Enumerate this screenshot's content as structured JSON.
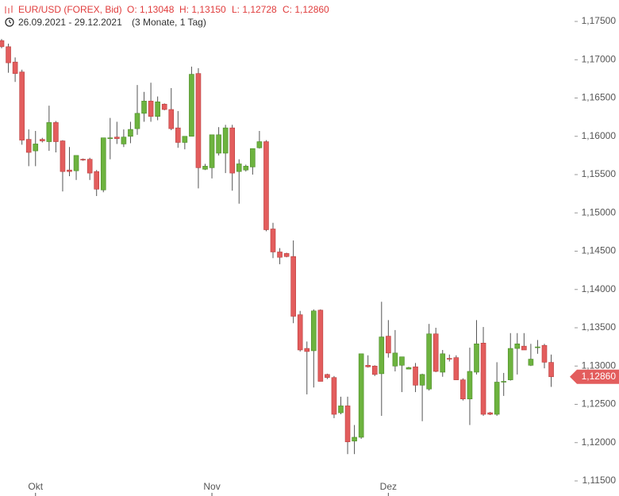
{
  "chart_data": {
    "type": "candlestick",
    "header": {
      "symbol": "EUR/USD (FOREX, Bid)",
      "open": "O: 1,13048",
      "high": "H: 1,13150",
      "low": "L: 1,12728",
      "close": "C: 1,12860",
      "range": "26.09.2021 - 29.12.2021",
      "span": "(3 Monate, 1 Tag)"
    },
    "categories": [
      null,
      null,
      null,
      null,
      null,
      "Okt",
      null,
      null,
      null,
      null,
      null,
      null,
      null,
      null,
      null,
      null,
      null,
      null,
      null,
      null,
      null,
      null,
      null,
      null,
      null,
      null,
      null,
      null,
      null,
      null,
      null,
      "Nov",
      null,
      null,
      null,
      null,
      null,
      null,
      null,
      null,
      null,
      null,
      null,
      null,
      null,
      null,
      null,
      null,
      null,
      null,
      null,
      null,
      null,
      null,
      null,
      null,
      null,
      "Dez",
      null,
      null,
      null,
      null,
      null,
      null,
      null,
      null,
      null,
      null,
      null,
      null,
      null,
      null,
      null,
      null,
      null,
      null,
      null,
      null,
      null,
      null,
      null,
      null
    ],
    "open": [
      1.1725,
      1.1717,
      1.1697,
      1.1684,
      1.1596,
      1.1581,
      1.1596,
      1.1593,
      1.1618,
      1.1594,
      1.1556,
      1.1555,
      1.157,
      1.157,
      1.1554,
      1.153,
      1.1597,
      1.1599,
      1.159,
      1.16,
      1.161,
      1.163,
      1.1646,
      1.1626,
      1.1642,
      1.1635,
      1.1611,
      1.1592,
      1.16,
      1.1682,
      1.1557,
      1.1559,
      1.1578,
      1.1578,
      1.1611,
      1.1554,
      1.1556,
      1.156,
      1.1585,
      1.1593,
      1.1479,
      1.1449,
      1.1447,
      1.1443,
      1.1367,
      1.1323,
      1.132,
      1.1373,
      1.1289,
      1.1285,
      1.1239,
      1.1248,
      1.1202,
      1.1207,
      1.1301,
      1.13,
      1.129,
      1.1339,
      1.13,
      1.1301,
      1.1296,
      1.1299,
      1.1275,
      1.127,
      1.1342,
      1.1292,
      1.131,
      1.1311,
      1.1282,
      1.1257,
      1.1292,
      1.133,
      1.1239,
      1.1237,
      1.1279,
      1.1282,
      1.1323,
      1.1326,
      1.1301,
      1.1324,
      1.1327,
      1.13048
    ],
    "high": [
      1.1727,
      1.1721,
      1.1703,
      1.1687,
      1.1609,
      1.1607,
      1.1598,
      1.164,
      1.162,
      1.1595,
      1.1586,
      1.1575,
      1.1571,
      1.1572,
      1.1556,
      1.1598,
      1.1624,
      1.1619,
      1.1609,
      1.1619,
      1.1667,
      1.1658,
      1.167,
      1.1652,
      1.1643,
      1.1663,
      1.1633,
      1.16,
      1.1691,
      1.1689,
      1.1564,
      1.1602,
      1.1612,
      1.1615,
      1.1615,
      1.157,
      1.1563,
      1.1584,
      1.1607,
      1.1595,
      1.1487,
      1.1454,
      1.1448,
      1.1464,
      1.1372,
      1.1332,
      1.1374,
      1.1374,
      1.129,
      1.1287,
      1.126,
      1.126,
      1.1223,
      1.1316,
      1.1314,
      1.1301,
      1.1384,
      1.136,
      1.1347,
      1.1312,
      1.1299,
      1.1304,
      1.129,
      1.1355,
      1.135,
      1.1321,
      1.1315,
      1.1314,
      1.1284,
      1.1324,
      1.136,
      1.1351,
      1.124,
      1.1305,
      1.1291,
      1.1343,
      1.1343,
      1.1343,
      1.1329,
      1.1334,
      1.1329,
      1.1315
    ],
    "low": [
      1.1715,
      1.1683,
      1.1671,
      1.1589,
      1.1561,
      1.1561,
      1.1592,
      1.1581,
      1.1579,
      1.1528,
      1.1548,
      1.1543,
      1.1568,
      1.1543,
      1.1522,
      1.1527,
      1.157,
      1.159,
      1.1586,
      1.1591,
      1.1602,
      1.1619,
      1.1619,
      1.1621,
      1.1634,
      1.1608,
      1.1585,
      1.1583,
      1.16,
      1.1532,
      1.1556,
      1.1545,
      1.1575,
      1.1552,
      1.1529,
      1.1512,
      1.1554,
      1.155,
      1.1584,
      1.1476,
      1.1441,
      1.1433,
      1.1442,
      1.1356,
      1.1319,
      1.1263,
      1.1272,
      1.128,
      1.1283,
      1.1232,
      1.1237,
      1.1185,
      1.1185,
      1.1205,
      1.1298,
      1.1287,
      1.1235,
      1.1311,
      1.1293,
      1.1266,
      1.1296,
      1.1266,
      1.1228,
      1.1268,
      1.1292,
      1.1286,
      1.1306,
      1.1282,
      1.1255,
      1.1223,
      1.1289,
      1.1235,
      1.1236,
      1.1235,
      1.1261,
      1.1281,
      1.1289,
      1.1321,
      1.13,
      1.1316,
      1.1297,
      1.12728
    ],
    "close": [
      1.1717,
      1.1696,
      1.1682,
      1.1595,
      1.1579,
      1.159,
      1.1594,
      1.1618,
      1.1593,
      1.1554,
      1.1554,
      1.1575,
      1.1569,
      1.1552,
      1.1531,
      1.1598,
      1.1598,
      1.1597,
      1.1599,
      1.1609,
      1.163,
      1.1646,
      1.1626,
      1.1645,
      1.1635,
      1.161,
      1.1592,
      1.16,
      1.1681,
      1.1559,
      1.1561,
      1.1602,
      1.1602,
      1.1611,
      1.1552,
      1.1564,
      1.1561,
      1.1584,
      1.1593,
      1.1478,
      1.1449,
      1.1442,
      1.1443,
      1.1365,
      1.1321,
      1.1319,
      1.1372,
      1.128,
      1.1285,
      1.1237,
      1.1248,
      1.1201,
      1.1207,
      1.1316,
      1.1299,
      1.1289,
      1.1338,
      1.1317,
      1.1317,
      1.1312,
      1.1298,
      1.1275,
      1.1289,
      1.1342,
      1.1293,
      1.1316,
      1.1309,
      1.1282,
      1.1257,
      1.1293,
      1.1329,
      1.1237,
      1.1237,
      1.1279,
      1.128,
      1.1323,
      1.1329,
      1.1321,
      1.1309,
      1.1325,
      1.1305,
      1.1286
    ],
    "up_color": "#6db33f",
    "down_color": "#e35d5d",
    "ylim": [
      1.11303,
      1.1778
    ],
    "yticks": [
      {
        "value": 1.115,
        "label": "1,11500"
      },
      {
        "value": 1.12,
        "label": "1,12000"
      },
      {
        "value": 1.125,
        "label": "1,12500"
      },
      {
        "value": 1.13,
        "label": "1,13000"
      },
      {
        "value": 1.135,
        "label": "1,13500"
      },
      {
        "value": 1.14,
        "label": "1,14000"
      },
      {
        "value": 1.145,
        "label": "1,14500"
      },
      {
        "value": 1.15,
        "label": "1,15000"
      },
      {
        "value": 1.155,
        "label": "1,15500"
      },
      {
        "value": 1.16,
        "label": "1,16000"
      },
      {
        "value": 1.165,
        "label": "1,16500"
      },
      {
        "value": 1.17,
        "label": "1,17000"
      },
      {
        "value": 1.175,
        "label": "1,17500"
      }
    ],
    "last_price": {
      "value": 1.1286,
      "label": "1,12860"
    }
  }
}
